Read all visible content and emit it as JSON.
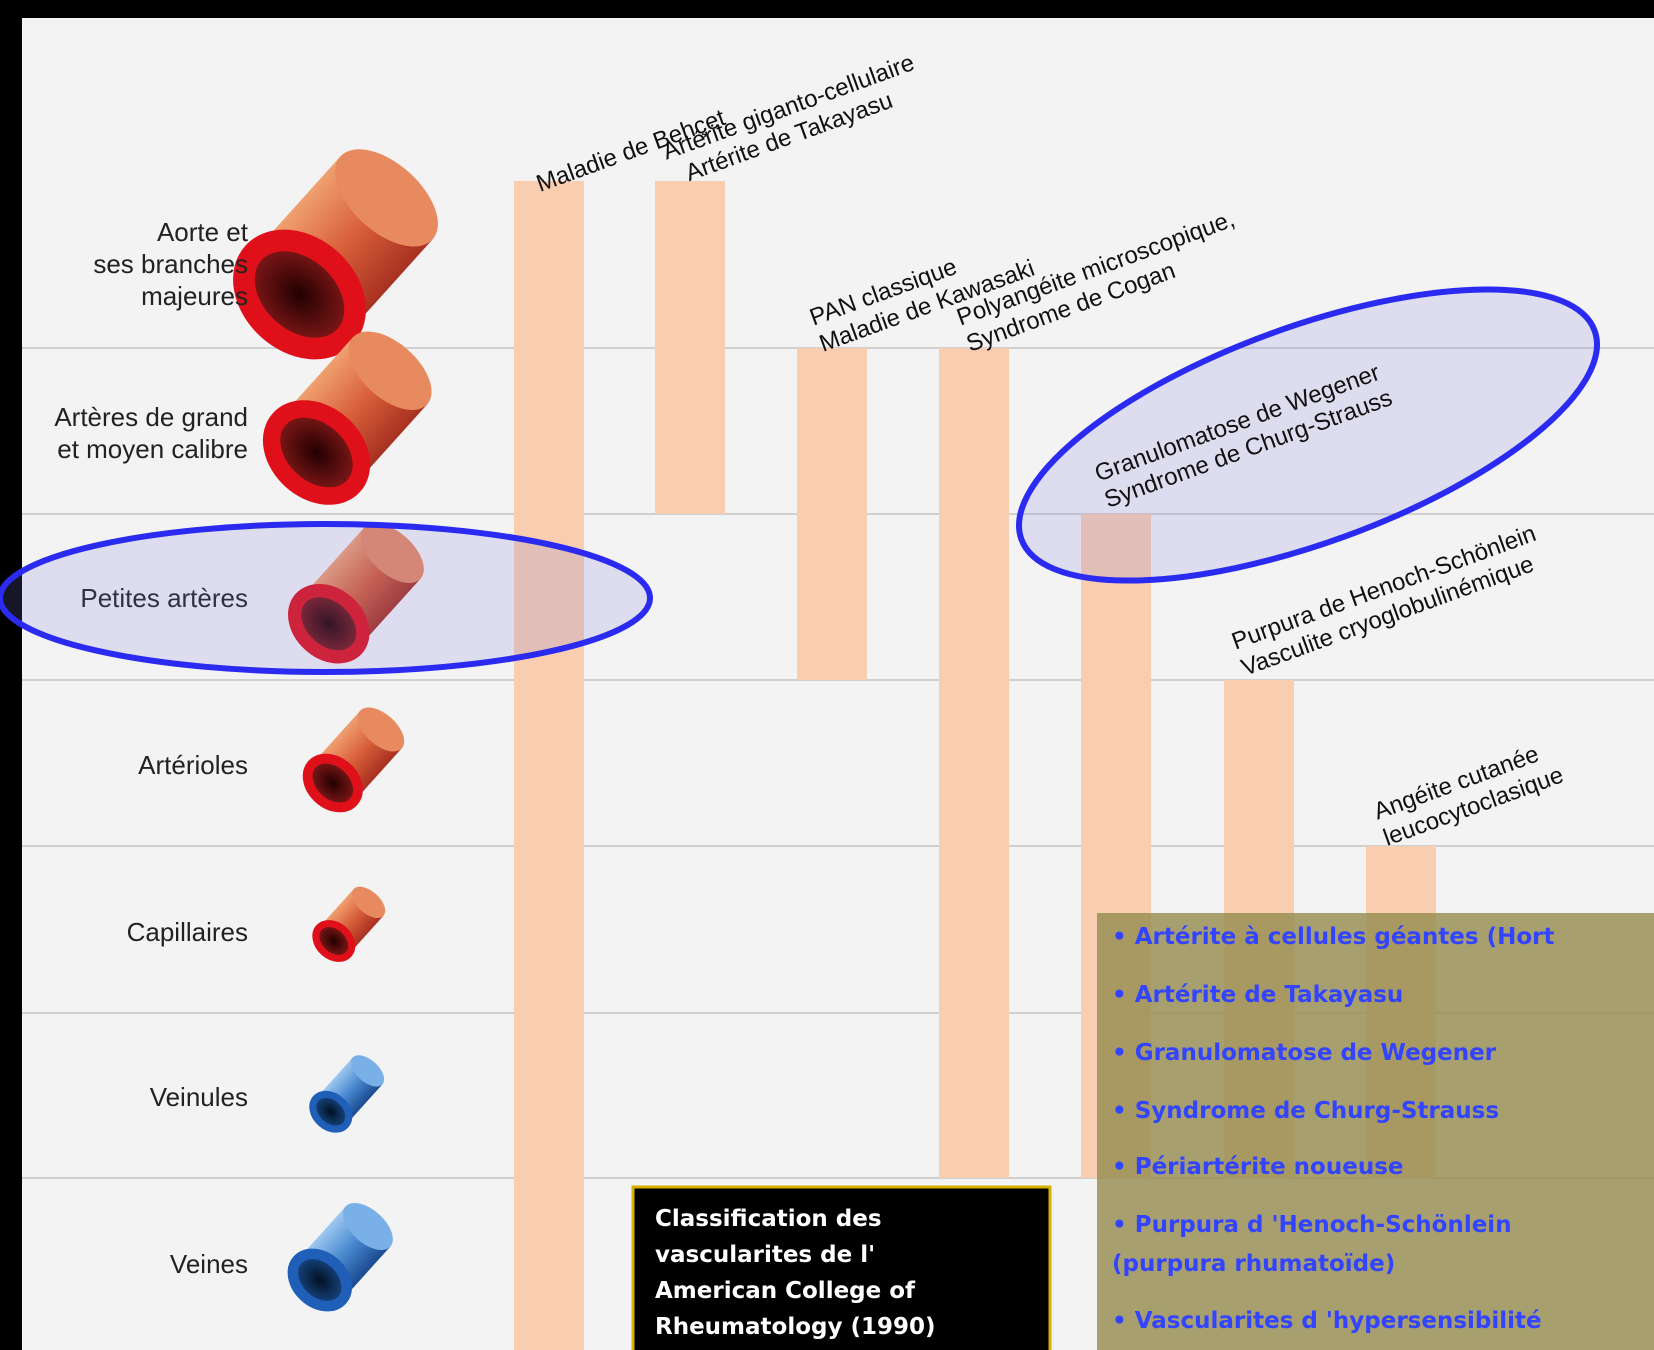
{
  "rows": [
    "Aorte et|ses branches|majeures",
    "Artères de grand|et moyen calibre",
    "Petites artères",
    "Artérioles",
    "Capillaires",
    "Veinules",
    "Veines"
  ],
  "diseases": [
    {
      "lines": [
        "Maladie de Behçet"
      ]
    },
    {
      "lines": [
        "Artérite giganto-cellulaire",
        "Artérite de Takayasu"
      ]
    },
    {
      "lines": [
        "PAN classique",
        "Maladie de Kawasaki"
      ]
    },
    {
      "lines": [
        "Polyangéite microscopique,",
        "Syndrome de Cogan"
      ]
    },
    {
      "lines": [
        "Granulomatose de Wegener",
        "Syndrome de Churg-Strauss"
      ]
    },
    {
      "lines": [
        "Purpura de Henoch-Schönlein",
        "Vasculite cryoglobulinémique"
      ]
    },
    {
      "lines": [
        "Angéite cutanée",
        "leucocytoclasique"
      ]
    }
  ],
  "caption": [
    "Classification des",
    "vascularites de l'",
    "American College of",
    "Rheumatology (1990)"
  ],
  "list": [
    "• Artérite à cellules géantes (Hort",
    "• Artérite de Takayasu",
    "• Granulomatose de Wegener",
    "• Syndrome de Churg-Strauss",
    "• Périartérite noueuse",
    "• Purpura d 'Henoch-Schönlein",
    "(purpura rhumatoïde)",
    "• Vascularites d 'hypersensibilité"
  ]
}
